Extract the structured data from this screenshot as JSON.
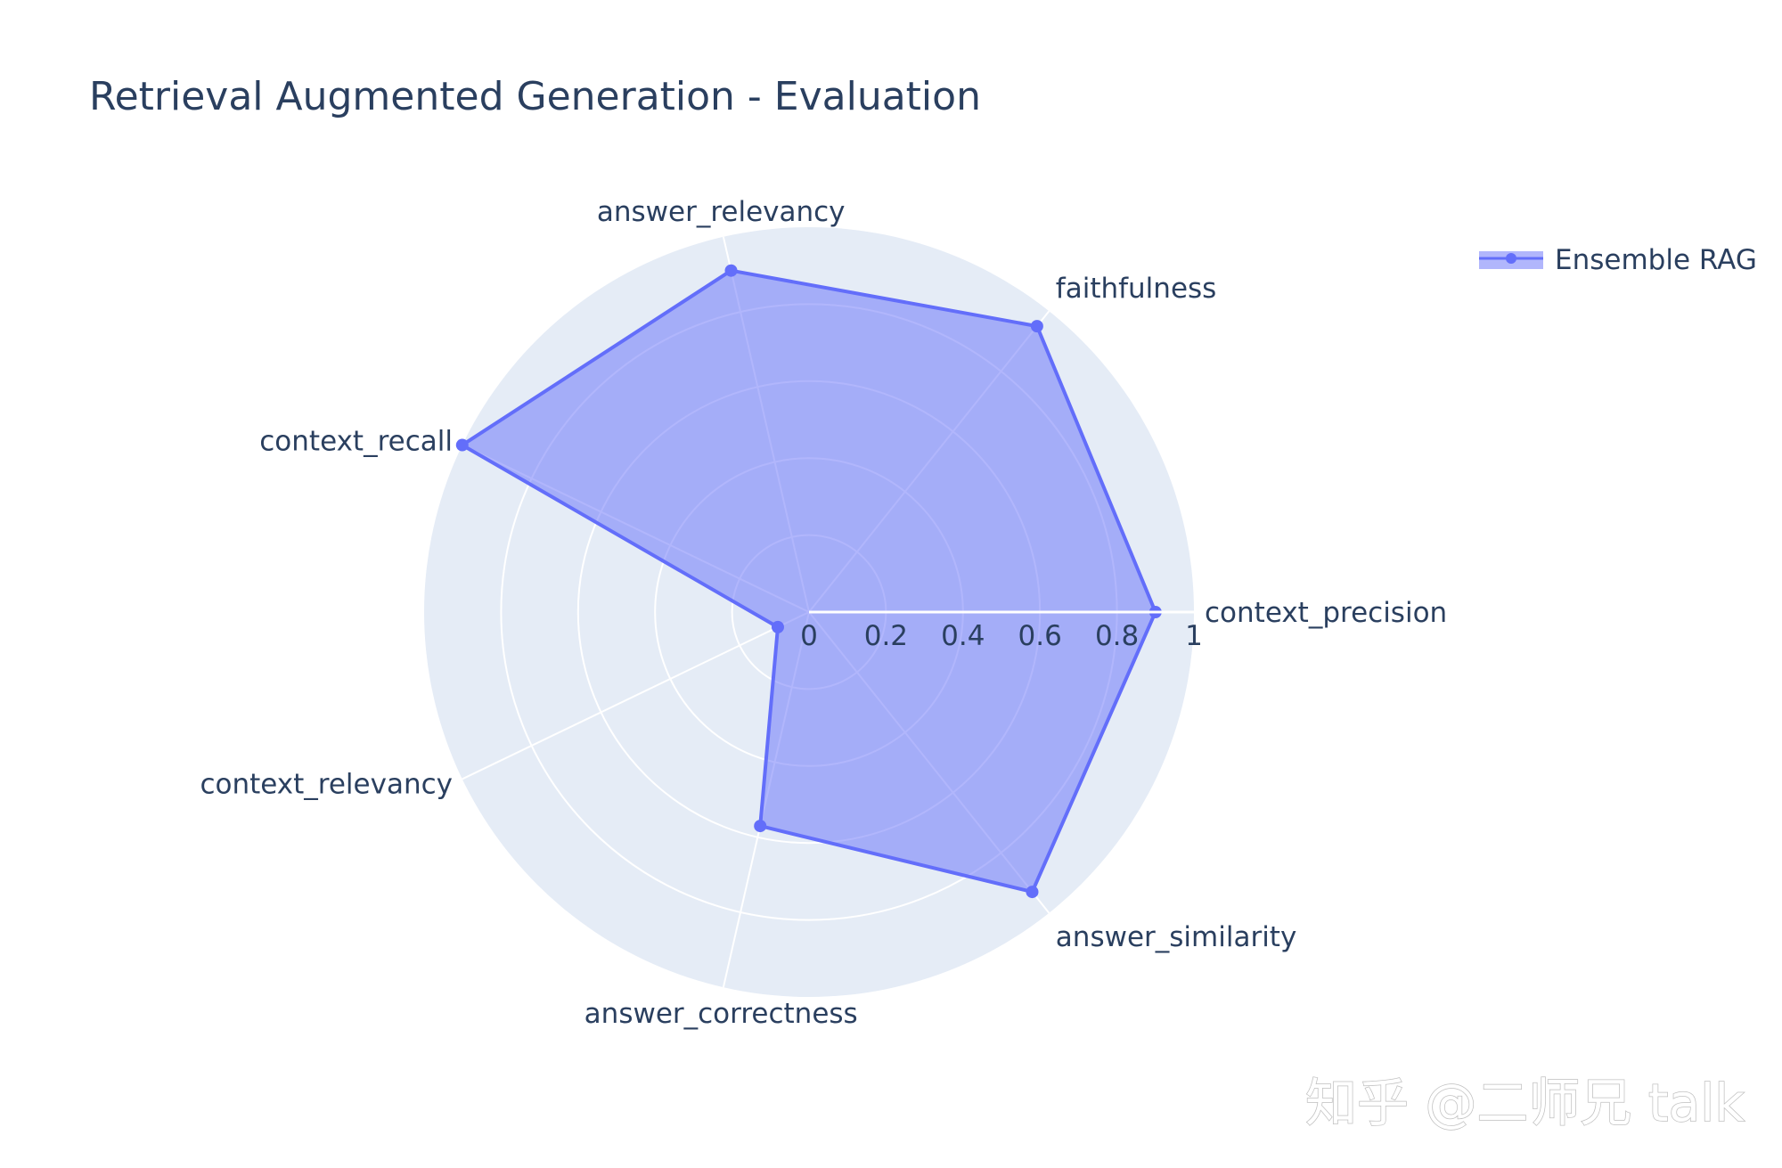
{
  "chart_data": {
    "type": "radar",
    "title": "Retrieval Augmented Generation - Evaluation",
    "categories": [
      "context_precision",
      "faithfulness",
      "answer_relevancy",
      "context_recall",
      "context_relevancy",
      "answer_correctness",
      "answer_similarity"
    ],
    "series": [
      {
        "name": "Ensemble RAG",
        "values": [
          0.9,
          0.95,
          0.91,
          1.0,
          0.09,
          0.57,
          0.93
        ],
        "color": "#636efa",
        "fill": "toself"
      }
    ],
    "radial_range": [
      0,
      1
    ],
    "radial_ticks": [
      "0",
      "0.2",
      "0.4",
      "0.6",
      "0.8",
      "1"
    ],
    "radial_tick_values": [
      0,
      0.2,
      0.4,
      0.6,
      0.8,
      1
    ],
    "grid": true,
    "polar_background": "#e5ecf6",
    "legend_position": "top-right"
  },
  "watermark": "知乎 @二师兄 talk"
}
